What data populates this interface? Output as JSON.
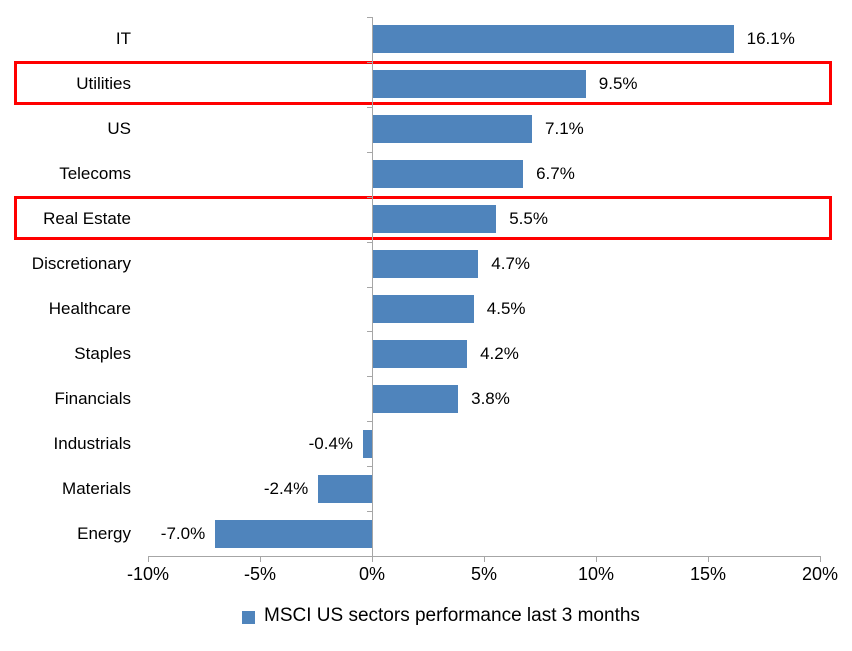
{
  "chart_data": {
    "type": "bar",
    "orientation": "horizontal",
    "categories": [
      "IT",
      "Utilities",
      "US",
      "Telecoms",
      "Real Estate",
      "Discretionary",
      "Healthcare",
      "Staples",
      "Financials",
      "Industrials",
      "Materials",
      "Energy"
    ],
    "values": [
      16.1,
      9.5,
      7.1,
      6.7,
      5.5,
      4.7,
      4.5,
      4.2,
      3.8,
      -0.4,
      -2.4,
      -7.0
    ],
    "value_labels": [
      "16.1%",
      "9.5%",
      "7.1%",
      "6.7%",
      "5.5%",
      "4.7%",
      "4.5%",
      "4.2%",
      "3.8%",
      "-0.4%",
      "-2.4%",
      "-7.0%"
    ],
    "highlighted_categories": [
      "Utilities",
      "Real Estate"
    ],
    "x_ticks": [
      -10,
      -5,
      0,
      5,
      10,
      15,
      20
    ],
    "x_tick_labels": [
      "-10%",
      "-5%",
      "0%",
      "5%",
      "10%",
      "15%",
      "20%"
    ],
    "xlim": [
      -10,
      20
    ],
    "grid": false,
    "legend": {
      "position": "bottom",
      "label": "MSCI US sectors performance last 3 months"
    },
    "colors": {
      "bar": "#4F84BC",
      "highlight_box": "#FF0000",
      "axis": "#A6A6A6",
      "text": "#000000"
    }
  }
}
